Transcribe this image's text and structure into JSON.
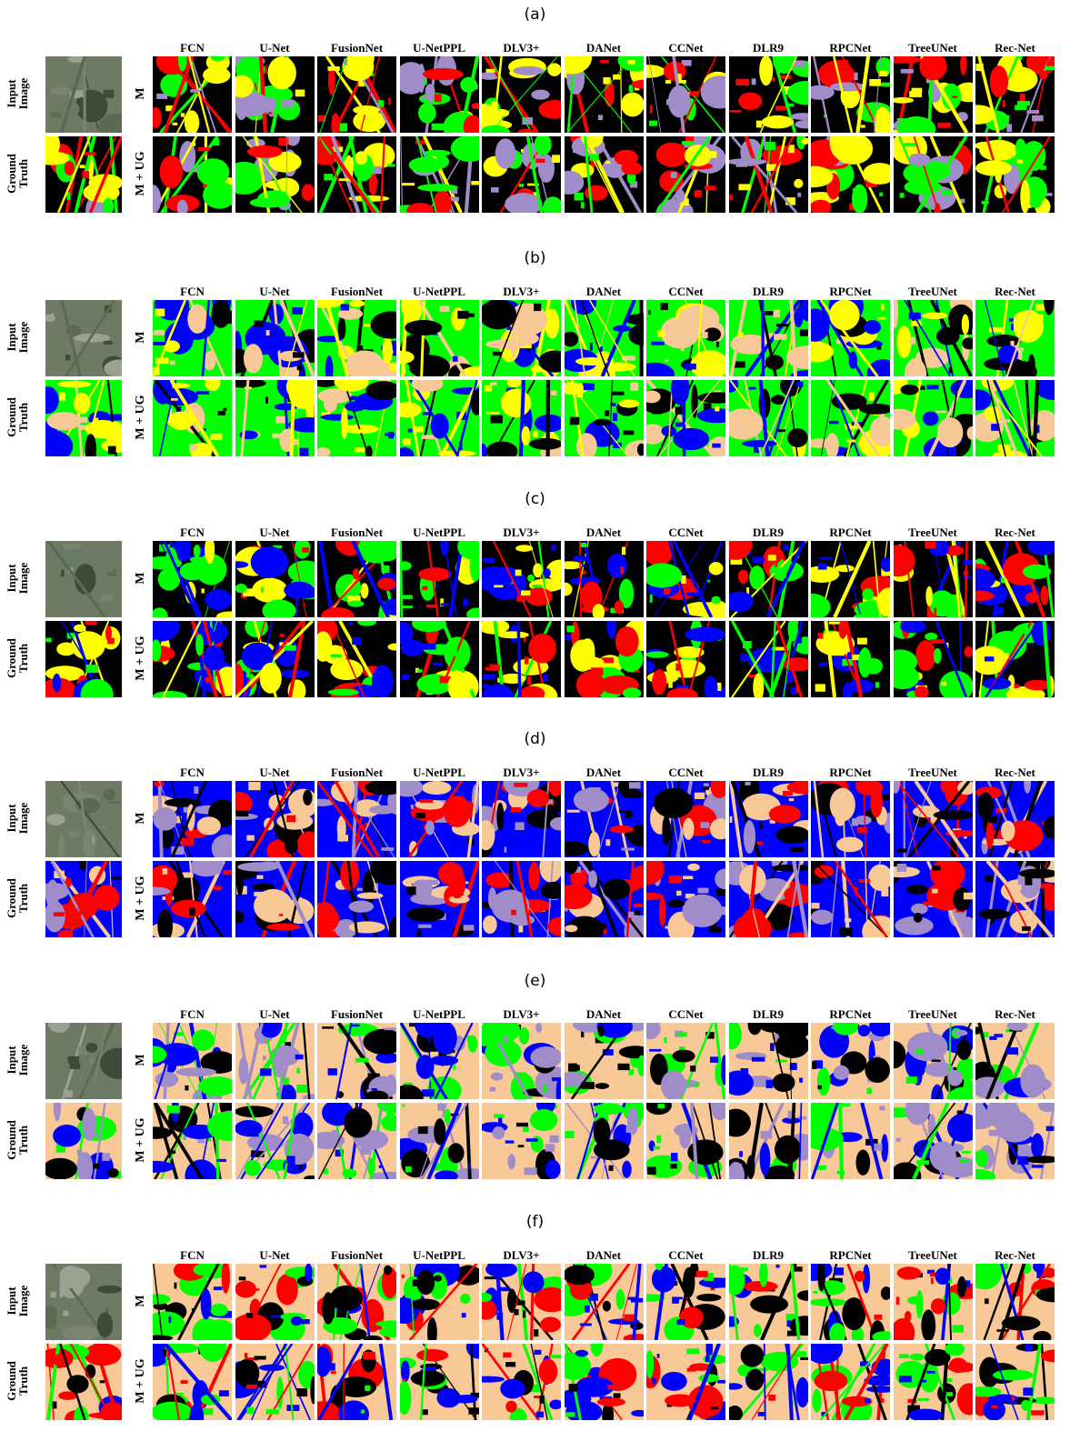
{
  "panels": [
    {
      "label": "(a)",
      "palette": [
        "#000000",
        "#ff0000",
        "#00ff00",
        "#ffff00",
        "#a08cc8"
      ]
    },
    {
      "label": "(b)",
      "palette": [
        "#00ff00",
        "#000000",
        "#ffff00",
        "#f8c896",
        "#0000ff"
      ]
    },
    {
      "label": "(c)",
      "palette": [
        "#000000",
        "#00ff00",
        "#ffff00",
        "#ff0000",
        "#0000ff"
      ]
    },
    {
      "label": "(d)",
      "palette": [
        "#0000ff",
        "#f8c896",
        "#000000",
        "#a08cc8",
        "#ff0000"
      ]
    },
    {
      "label": "(e)",
      "palette": [
        "#f8c896",
        "#00ff00",
        "#0000ff",
        "#a08cc8",
        "#000000"
      ]
    },
    {
      "label": "(f)",
      "palette": [
        "#f8c896",
        "#000000",
        "#00ff00",
        "#0000ff",
        "#ff0000"
      ]
    }
  ],
  "methods": [
    "FCN",
    "U-Net",
    "FusionNet",
    "U-NetPPL",
    "DLV3+",
    "DANet",
    "CCNet",
    "DLR9",
    "RPCNet",
    "TreeUNet",
    "Rec-Net"
  ],
  "row_labels": {
    "top": "M",
    "bottom": "M + UG"
  },
  "side_labels": {
    "input": "Input\nImage",
    "ground": "Ground\nTruth"
  }
}
